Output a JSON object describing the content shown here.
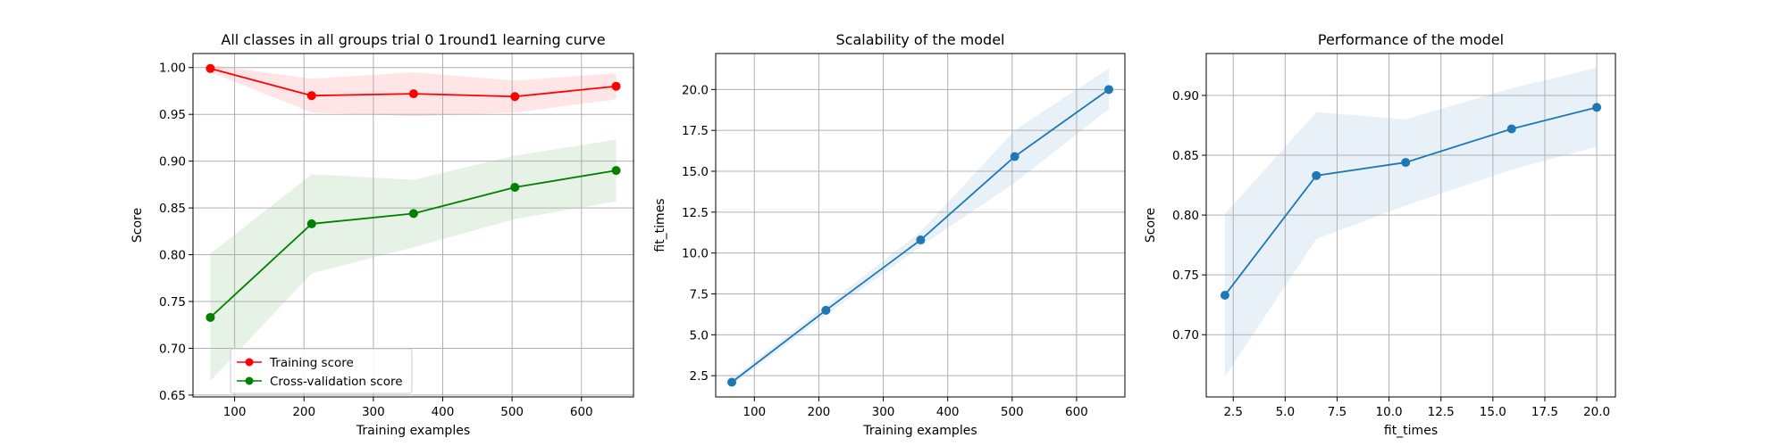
{
  "charts": [
    {
      "title": "All classes in all groups trial 0 1round1 learning curve",
      "xlabel": "Training examples",
      "ylabel": "Score",
      "xticks": [
        "100",
        "200",
        "300",
        "400",
        "500",
        "600"
      ],
      "yticks": [
        "0.65",
        "0.70",
        "0.75",
        "0.80",
        "0.85",
        "0.90",
        "0.95",
        "1.00"
      ],
      "legend": [
        "Training score",
        "Cross-validation score"
      ]
    },
    {
      "title": "Scalability of the model",
      "xlabel": "Training examples",
      "ylabel": "fit_times",
      "xticks": [
        "100",
        "200",
        "300",
        "400",
        "500",
        "600"
      ],
      "yticks": [
        "2.5",
        "5.0",
        "7.5",
        "10.0",
        "12.5",
        "15.0",
        "17.5",
        "20.0"
      ]
    },
    {
      "title": "Performance of the model",
      "xlabel": "fit_times",
      "ylabel": "Score",
      "xticks": [
        "2.5",
        "5.0",
        "7.5",
        "10.0",
        "12.5",
        "15.0",
        "17.5",
        "20.0"
      ],
      "yticks": [
        "0.70",
        "0.75",
        "0.80",
        "0.85",
        "0.90"
      ]
    }
  ],
  "chart_data": [
    {
      "type": "line",
      "title": "All classes in all groups trial 0 1round1 learning curve",
      "xlabel": "Training examples",
      "ylabel": "Score",
      "xlim": [
        40,
        675
      ],
      "ylim": [
        0.648,
        1.015
      ],
      "grid": true,
      "legend_position": "lower-left",
      "x": [
        65,
        211,
        358,
        504,
        650
      ],
      "series": [
        {
          "name": "Training score",
          "color": "#ff0000",
          "values": [
            0.999,
            0.97,
            0.972,
            0.969,
            0.98
          ],
          "band_lower": [
            0.995,
            0.952,
            0.948,
            0.952,
            0.966
          ],
          "band_upper": [
            1.003,
            0.988,
            0.995,
            0.986,
            0.994
          ]
        },
        {
          "name": "Cross-validation score",
          "color": "#008000",
          "values": [
            0.733,
            0.833,
            0.844,
            0.872,
            0.89
          ],
          "band_lower": [
            0.665,
            0.78,
            0.808,
            0.838,
            0.857
          ],
          "band_upper": [
            0.801,
            0.886,
            0.88,
            0.906,
            0.923
          ]
        }
      ]
    },
    {
      "type": "line",
      "title": "Scalability of the model",
      "xlabel": "Training examples",
      "ylabel": "fit_times",
      "xlim": [
        40,
        675
      ],
      "ylim": [
        1.2,
        22.2
      ],
      "grid": true,
      "x": [
        65,
        211,
        358,
        504,
        650
      ],
      "series": [
        {
          "color": "#1f77b4",
          "values": [
            2.1,
            6.5,
            10.8,
            15.9,
            20.0
          ],
          "band_lower": [
            1.9,
            6.2,
            10.4,
            14.3,
            18.8
          ],
          "band_upper": [
            2.3,
            6.8,
            11.3,
            17.5,
            21.3
          ]
        }
      ]
    },
    {
      "type": "line",
      "title": "Performance of the model",
      "xlabel": "fit_times",
      "ylabel": "Score",
      "xlim": [
        1.2,
        20.9
      ],
      "ylim": [
        0.648,
        0.935
      ],
      "grid": true,
      "x": [
        2.1,
        6.5,
        10.8,
        15.9,
        20.0
      ],
      "series": [
        {
          "color": "#1f77b4",
          "values": [
            0.733,
            0.833,
            0.844,
            0.872,
            0.89
          ],
          "band_lower": [
            0.665,
            0.78,
            0.808,
            0.838,
            0.857
          ],
          "band_upper": [
            0.801,
            0.886,
            0.88,
            0.906,
            0.923
          ]
        }
      ]
    }
  ]
}
